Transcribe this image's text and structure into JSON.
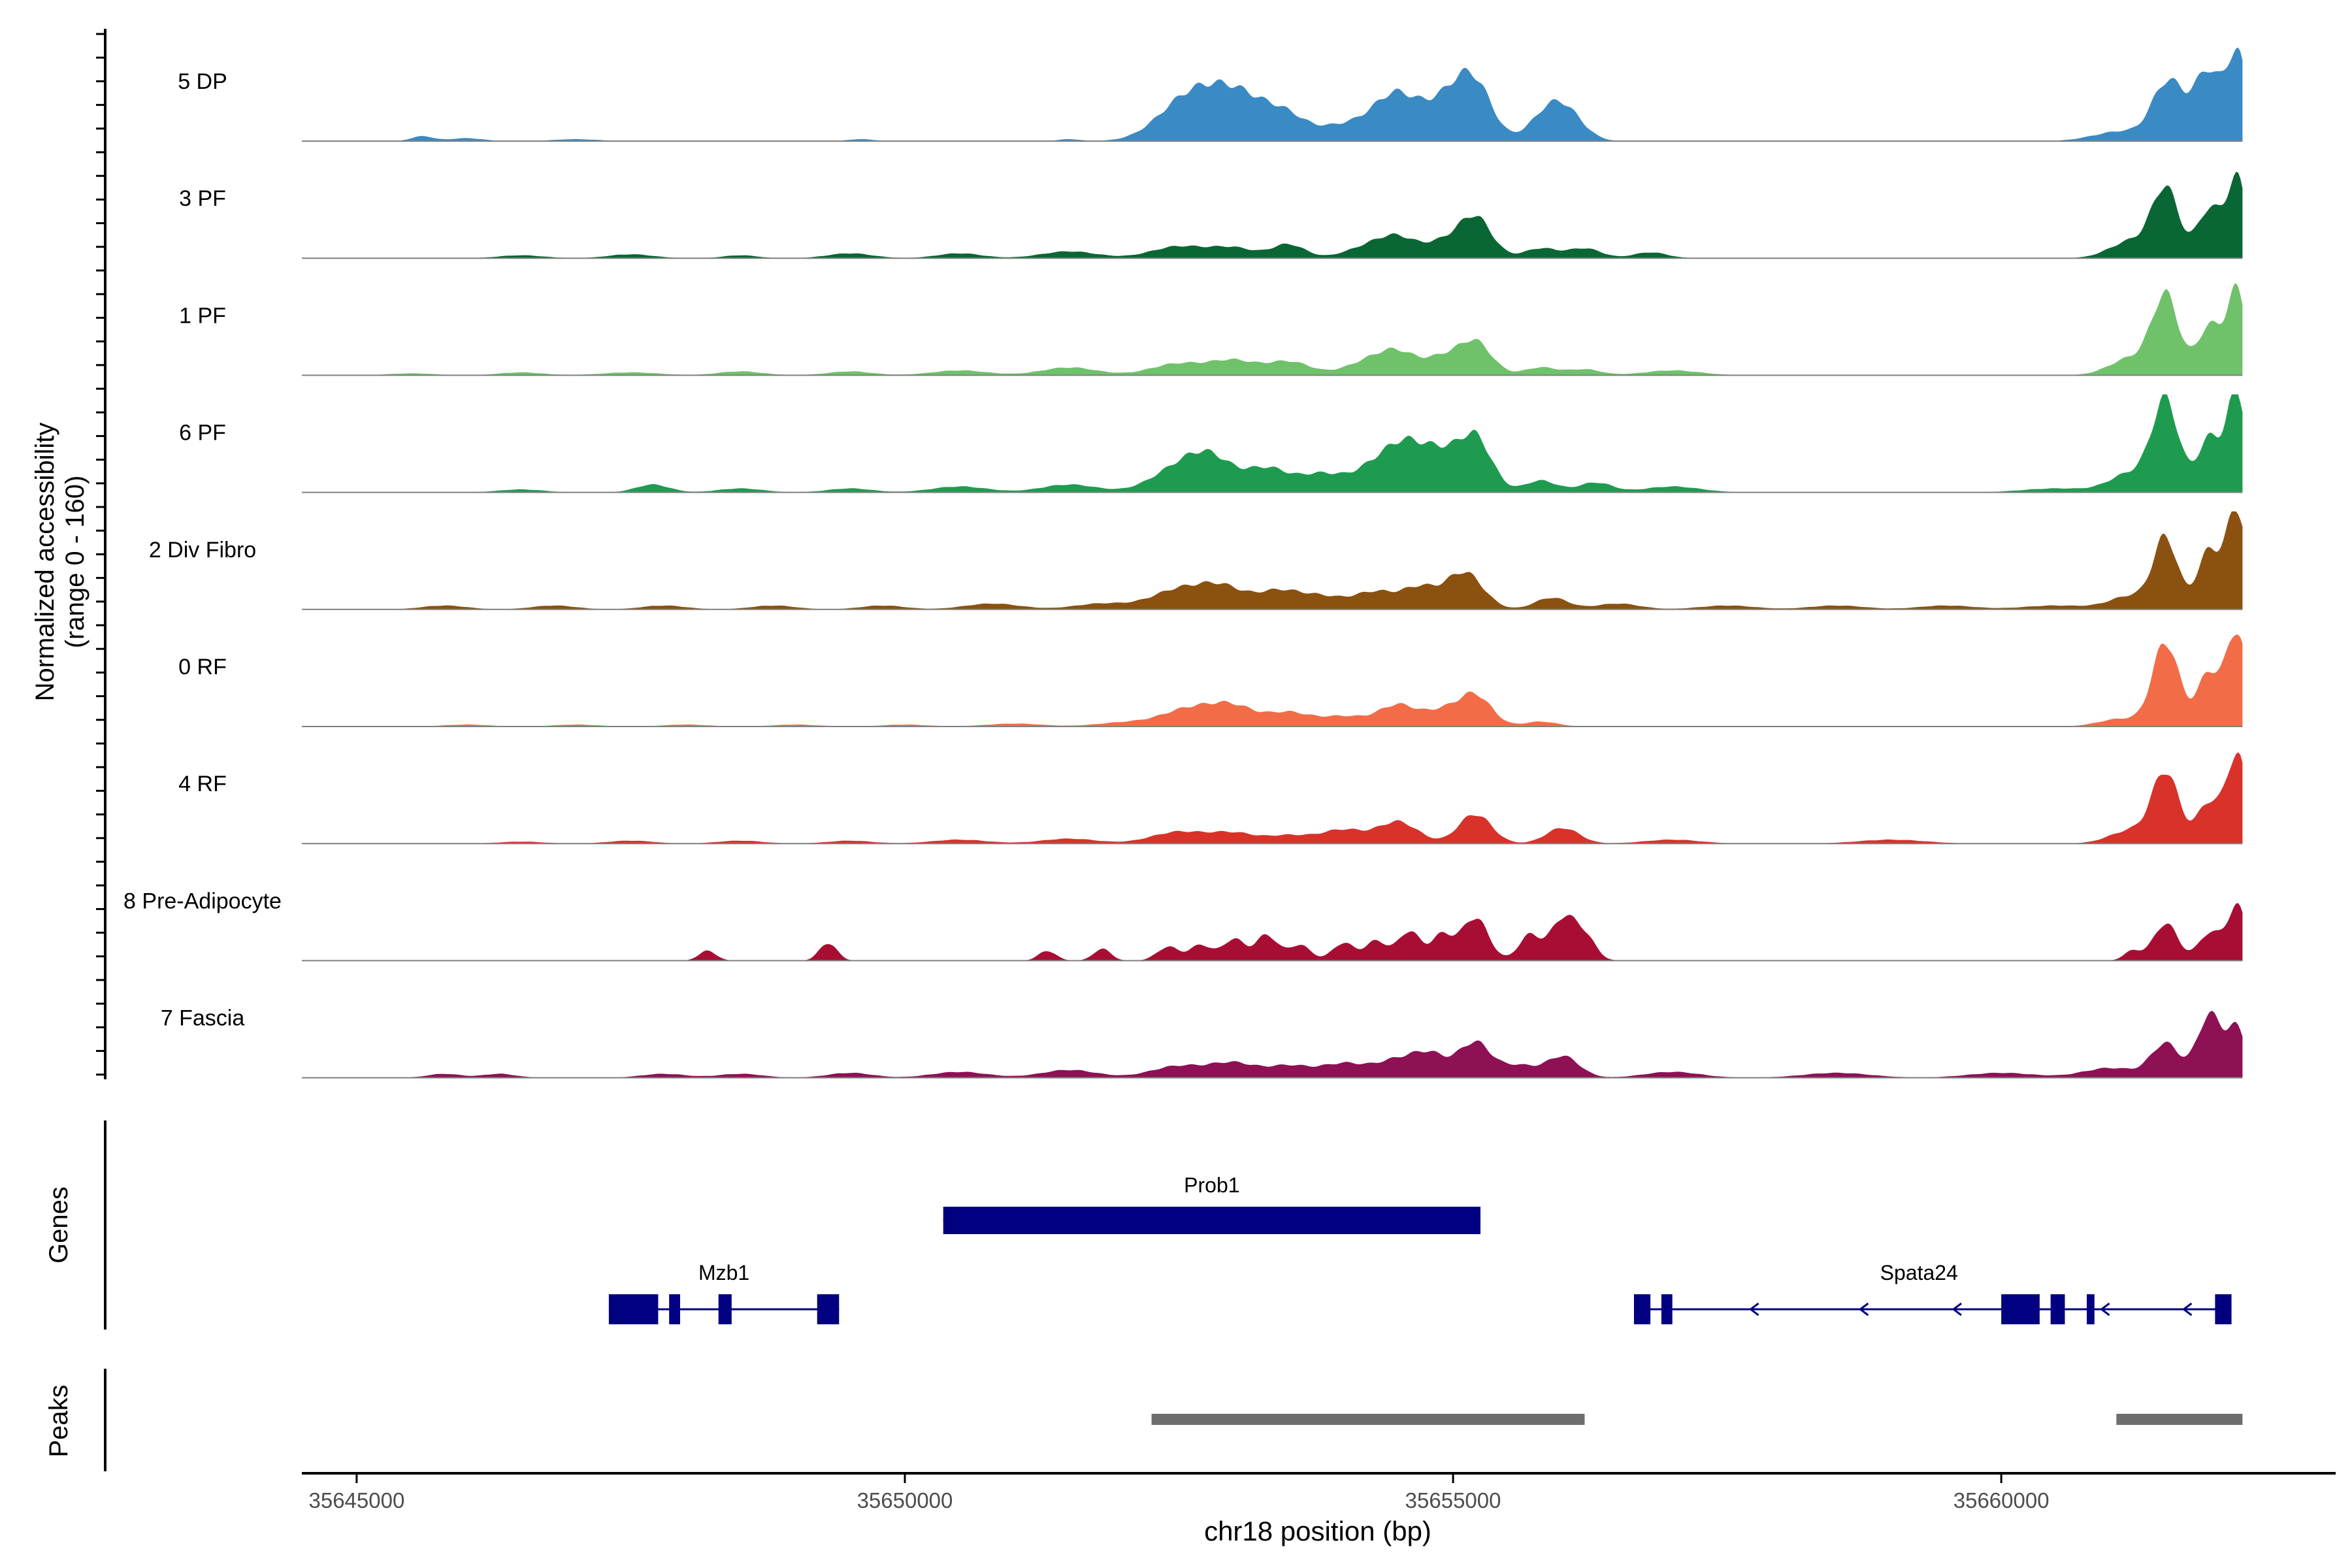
{
  "chart_data": {
    "type": "area",
    "title": "",
    "xlabel": "chr18 position (bp)",
    "ylabel_line1": "Normalized accessibility",
    "ylabel_line2": "(range 0 - 160)",
    "ylim": [
      0,
      160
    ],
    "xlim": [
      35644500,
      35663050
    ],
    "x_data_end": 35662200,
    "x_ticks": [
      35645000,
      35650000,
      35655000,
      35660000
    ],
    "x_tick_labels": [
      "35645000",
      "35650000",
      "35655000",
      "35660000"
    ],
    "series": [
      {
        "name": "5 DP",
        "color": "#3a8ac4",
        "peaks": [
          [
            35645600,
            5,
            100
          ],
          [
            35646000,
            3,
            150
          ],
          [
            35647000,
            2,
            200
          ],
          [
            35649600,
            2,
            120
          ],
          [
            35651500,
            2,
            100
          ],
          [
            35652500,
            22,
            250
          ],
          [
            35652800,
            36,
            300
          ],
          [
            35653100,
            26,
            250
          ],
          [
            35653500,
            22,
            200
          ],
          [
            35653900,
            8,
            150
          ],
          [
            35654200,
            18,
            200
          ],
          [
            35654500,
            42,
            180
          ],
          [
            35654800,
            20,
            150
          ],
          [
            35655200,
            55,
            160
          ],
          [
            35655000,
            28,
            150
          ],
          [
            35655800,
            14,
            150
          ],
          [
            35656000,
            34,
            170
          ],
          [
            35661100,
            10,
            250
          ],
          [
            35661500,
            42,
            130
          ],
          [
            35661900,
            55,
            110
          ],
          [
            35662150,
            88,
            90
          ],
          [
            35661700,
            28,
            200
          ]
        ]
      },
      {
        "name": "3 PF",
        "color": "#0a6634",
        "peaks": [
          [
            35646500,
            3,
            200
          ],
          [
            35647500,
            4,
            200
          ],
          [
            35648500,
            3,
            150
          ],
          [
            35649500,
            5,
            200
          ],
          [
            35650500,
            5,
            200
          ],
          [
            35651500,
            7,
            250
          ],
          [
            35652500,
            12,
            250
          ],
          [
            35653000,
            10,
            200
          ],
          [
            35653500,
            14,
            150
          ],
          [
            35654200,
            10,
            200
          ],
          [
            35654500,
            20,
            180
          ],
          [
            35654900,
            14,
            150
          ],
          [
            35655200,
            42,
            150
          ],
          [
            35655800,
            10,
            150
          ],
          [
            35656200,
            10,
            150
          ],
          [
            35656800,
            6,
            150
          ],
          [
            35661200,
            18,
            200
          ],
          [
            35661500,
            68,
            120
          ],
          [
            35661900,
            50,
            110
          ],
          [
            35662150,
            80,
            90
          ]
        ]
      },
      {
        "name": "1 PF",
        "color": "#6fc26a",
        "peaks": [
          [
            35645500,
            2,
            200
          ],
          [
            35646500,
            3,
            200
          ],
          [
            35647500,
            3,
            250
          ],
          [
            35648500,
            4,
            200
          ],
          [
            35649500,
            4,
            200
          ],
          [
            35650500,
            5,
            250
          ],
          [
            35651500,
            8,
            250
          ],
          [
            35652500,
            12,
            250
          ],
          [
            35653000,
            14,
            200
          ],
          [
            35653500,
            14,
            200
          ],
          [
            35654200,
            12,
            200
          ],
          [
            35654500,
            22,
            180
          ],
          [
            35654900,
            16,
            150
          ],
          [
            35655200,
            34,
            150
          ],
          [
            35655800,
            8,
            150
          ],
          [
            35656200,
            6,
            150
          ],
          [
            35657000,
            5,
            250
          ],
          [
            35661200,
            18,
            200
          ],
          [
            35661500,
            78,
            120
          ],
          [
            35661900,
            50,
            110
          ],
          [
            35662150,
            85,
            90
          ]
        ]
      },
      {
        "name": "6 PF",
        "color": "#1f9b50",
        "peaks": [
          [
            35646500,
            3,
            200
          ],
          [
            35647700,
            8,
            150
          ],
          [
            35648500,
            4,
            200
          ],
          [
            35649500,
            4,
            200
          ],
          [
            35650500,
            6,
            250
          ],
          [
            35651500,
            8,
            250
          ],
          [
            35652500,
            24,
            250
          ],
          [
            35652800,
            28,
            200
          ],
          [
            35653300,
            24,
            200
          ],
          [
            35653800,
            18,
            200
          ],
          [
            35654300,
            26,
            200
          ],
          [
            35654600,
            42,
            180
          ],
          [
            35654900,
            30,
            150
          ],
          [
            35655200,
            56,
            150
          ],
          [
            35655800,
            12,
            150
          ],
          [
            35656300,
            10,
            150
          ],
          [
            35657000,
            6,
            250
          ],
          [
            35660500,
            4,
            300
          ],
          [
            35661200,
            20,
            200
          ],
          [
            35661500,
            90,
            120
          ],
          [
            35661900,
            55,
            110
          ],
          [
            35662150,
            100,
            90
          ]
        ]
      },
      {
        "name": "2 Div Fibro",
        "color": "#8b5110",
        "peaks": [
          [
            35645800,
            4,
            200
          ],
          [
            35646800,
            4,
            200
          ],
          [
            35647800,
            4,
            200
          ],
          [
            35648800,
            4,
            200
          ],
          [
            35649800,
            4,
            200
          ],
          [
            35650800,
            6,
            250
          ],
          [
            35651800,
            6,
            250
          ],
          [
            35652500,
            20,
            250
          ],
          [
            35652900,
            20,
            200
          ],
          [
            35653400,
            18,
            200
          ],
          [
            35653800,
            12,
            200
          ],
          [
            35654300,
            18,
            200
          ],
          [
            35654700,
            20,
            150
          ],
          [
            35655100,
            38,
            170
          ],
          [
            35655900,
            12,
            150
          ],
          [
            35656500,
            6,
            200
          ],
          [
            35657500,
            4,
            250
          ],
          [
            35658500,
            4,
            250
          ],
          [
            35659500,
            4,
            250
          ],
          [
            35660500,
            4,
            300
          ],
          [
            35661200,
            14,
            200
          ],
          [
            35661500,
            70,
            110
          ],
          [
            35661900,
            60,
            110
          ],
          [
            35662150,
            100,
            90
          ]
        ]
      },
      {
        "name": "0 RF",
        "color": "#f26d47",
        "peaks": [
          [
            35646000,
            2,
            200
          ],
          [
            35647000,
            2,
            200
          ],
          [
            35648000,
            2,
            200
          ],
          [
            35649000,
            2,
            200
          ],
          [
            35650000,
            2,
            200
          ],
          [
            35651000,
            3,
            250
          ],
          [
            35652000,
            4,
            250
          ],
          [
            35652600,
            18,
            250
          ],
          [
            35653000,
            18,
            200
          ],
          [
            35653500,
            14,
            200
          ],
          [
            35654000,
            10,
            200
          ],
          [
            35654500,
            22,
            180
          ],
          [
            35654900,
            14,
            150
          ],
          [
            35655200,
            32,
            150
          ],
          [
            35655800,
            5,
            150
          ],
          [
            35661100,
            8,
            200
          ],
          [
            35661500,
            85,
            120
          ],
          [
            35661900,
            55,
            110
          ],
          [
            35662150,
            95,
            90
          ]
        ]
      },
      {
        "name": "4 RF",
        "color": "#d8322a",
        "peaks": [
          [
            35646500,
            2,
            200
          ],
          [
            35647500,
            3,
            200
          ],
          [
            35648500,
            3,
            200
          ],
          [
            35649500,
            3,
            200
          ],
          [
            35650500,
            4,
            250
          ],
          [
            35651500,
            5,
            250
          ],
          [
            35652500,
            12,
            250
          ],
          [
            35653000,
            10,
            200
          ],
          [
            35653500,
            8,
            200
          ],
          [
            35654000,
            14,
            200
          ],
          [
            35654500,
            22,
            180
          ],
          [
            35655200,
            30,
            150
          ],
          [
            35656000,
            16,
            150
          ],
          [
            35657000,
            4,
            250
          ],
          [
            35659000,
            4,
            300
          ],
          [
            35661200,
            14,
            200
          ],
          [
            35661500,
            70,
            120
          ],
          [
            35661900,
            42,
            110
          ],
          [
            35662150,
            90,
            90
          ]
        ]
      },
      {
        "name": "8 Pre-Adipocyte",
        "color": "#a80e33",
        "peaks": [
          [
            35648200,
            10,
            80
          ],
          [
            35649300,
            18,
            80
          ],
          [
            35651300,
            10,
            80
          ],
          [
            35651800,
            12,
            80
          ],
          [
            35652400,
            14,
            100
          ],
          [
            35652700,
            16,
            100
          ],
          [
            35653000,
            22,
            100
          ],
          [
            35653300,
            26,
            100
          ],
          [
            35653600,
            16,
            100
          ],
          [
            35654000,
            18,
            100
          ],
          [
            35654300,
            20,
            100
          ],
          [
            35654600,
            30,
            100
          ],
          [
            35654900,
            26,
            100
          ],
          [
            35655200,
            44,
            120
          ],
          [
            35655700,
            26,
            100
          ],
          [
            35656000,
            42,
            110
          ],
          [
            35656200,
            24,
            100
          ],
          [
            35661200,
            10,
            80
          ],
          [
            35661500,
            38,
            110
          ],
          [
            35661900,
            28,
            100
          ],
          [
            35662150,
            55,
            90
          ]
        ]
      },
      {
        "name": "7 Fascia",
        "color": "#8e1055",
        "peaks": [
          [
            35645800,
            4,
            150
          ],
          [
            35646300,
            4,
            150
          ],
          [
            35647800,
            4,
            200
          ],
          [
            35648500,
            4,
            200
          ],
          [
            35649500,
            5,
            200
          ],
          [
            35650500,
            6,
            250
          ],
          [
            35651500,
            8,
            250
          ],
          [
            35652500,
            12,
            250
          ],
          [
            35653000,
            14,
            200
          ],
          [
            35653500,
            12,
            200
          ],
          [
            35654000,
            14,
            200
          ],
          [
            35654500,
            18,
            200
          ],
          [
            35654800,
            20,
            150
          ],
          [
            35655200,
            36,
            150
          ],
          [
            35655600,
            12,
            150
          ],
          [
            35656000,
            22,
            150
          ],
          [
            35657000,
            6,
            250
          ],
          [
            35658500,
            5,
            300
          ],
          [
            35660000,
            5,
            300
          ],
          [
            35661000,
            10,
            250
          ],
          [
            35661500,
            34,
            130
          ],
          [
            35661900,
            64,
            110
          ],
          [
            35662150,
            48,
            90
          ]
        ]
      }
    ],
    "genes": [
      {
        "name": "Prob1",
        "row": 1,
        "start": 35650350,
        "end": 35655250,
        "strand": "",
        "exons": [
          [
            35650350,
            35655250
          ]
        ]
      },
      {
        "name": "Mzb1",
        "row": 2,
        "start": 35647300,
        "end": 35649400,
        "strand": "",
        "exons": [
          [
            35647300,
            35647750
          ],
          [
            35647850,
            35647950
          ],
          [
            35648300,
            35648420
          ],
          [
            35649200,
            35649400
          ]
        ]
      },
      {
        "name": "Spata24",
        "row": 2,
        "start": 35656650,
        "end": 35662100,
        "strand": "-",
        "exons": [
          [
            35656650,
            35656800
          ],
          [
            35656900,
            35657000
          ],
          [
            35660000,
            35660350
          ],
          [
            35660450,
            35660580
          ],
          [
            35660780,
            35660850
          ],
          [
            35661950,
            35662100
          ]
        ],
        "label_x": 35659250
      }
    ],
    "peaks_track": [
      [
        35652250,
        35656200
      ],
      [
        35661050,
        35662200
      ]
    ],
    "panel_labels": {
      "genes": "Genes",
      "peaks": "Peaks"
    }
  }
}
